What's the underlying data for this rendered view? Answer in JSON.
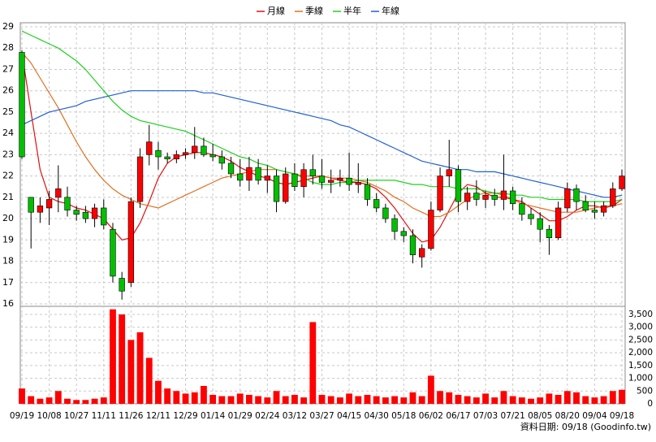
{
  "chart_data": {
    "type": "candlestick",
    "source": "資料日期: 09/18 (Goodinfo.tw)",
    "grid": true,
    "legend": "top",
    "up_color": "#ff0000",
    "down_color": "#00c000",
    "categories": [
      "09/19",
      null,
      null,
      "10/08",
      null,
      null,
      "10/27",
      null,
      null,
      "11/11",
      null,
      null,
      "11/26",
      null,
      null,
      "12/11",
      null,
      null,
      "12/29",
      null,
      null,
      "01/14",
      null,
      null,
      "01/29",
      null,
      null,
      "02/24",
      null,
      null,
      "03/12",
      null,
      null,
      "03/27",
      null,
      null,
      "04/15",
      null,
      null,
      "04/30",
      null,
      null,
      "05/18",
      null,
      null,
      "06/02",
      null,
      null,
      "06/17",
      null,
      null,
      "07/03",
      null,
      null,
      "07/21",
      null,
      null,
      "08/05",
      null,
      null,
      "08/20",
      null,
      null,
      "09/04",
      null,
      null,
      "09/18"
    ],
    "open": [
      27.8,
      21.0,
      20.3,
      20.5,
      21.0,
      21.0,
      20.4,
      20.3,
      20.0,
      20.5,
      19.5,
      17.2,
      17.0,
      20.8,
      23.0,
      23.2,
      22.9,
      22.8,
      23.0,
      23.1,
      23.4,
      23.0,
      22.9,
      22.6,
      22.1,
      21.8,
      22.4,
      21.8,
      22.0,
      20.8,
      22.1,
      21.5,
      22.3,
      22.0,
      21.7,
      21.8,
      21.9,
      21.6,
      21.6,
      20.9,
      20.5,
      20.0,
      19.4,
      19.2,
      18.2,
      18.6,
      20.4,
      22.0,
      22.3,
      20.8,
      21.2,
      20.9,
      21.1,
      20.9,
      21.3,
      20.7,
      20.2,
      20.0,
      19.5,
      19.1,
      20.5,
      21.4,
      20.8,
      20.4,
      20.3,
      20.6,
      21.4
    ],
    "high": [
      27.9,
      21.0,
      21.0,
      21.3,
      22.5,
      21.5,
      20.6,
      20.6,
      20.7,
      20.9,
      19.8,
      17.5,
      21.0,
      23.3,
      24.4,
      23.6,
      23.1,
      23.2,
      23.3,
      24.3,
      23.8,
      23.5,
      23.2,
      22.9,
      22.8,
      22.9,
      22.8,
      22.5,
      22.3,
      22.4,
      22.6,
      22.6,
      23.0,
      22.8,
      22.3,
      22.3,
      23.1,
      22.6,
      21.9,
      21.2,
      20.7,
      20.2,
      19.6,
      19.5,
      18.8,
      20.8,
      22.4,
      23.7,
      22.5,
      21.5,
      21.8,
      21.3,
      21.4,
      23.0,
      21.5,
      21.0,
      20.5,
      20.3,
      19.7,
      20.8,
      21.7,
      21.6,
      21.1,
      20.8,
      20.8,
      21.7,
      22.3
    ],
    "low": [
      22.8,
      18.6,
      19.8,
      19.7,
      20.3,
      20.1,
      19.9,
      19.8,
      19.6,
      19.5,
      17.0,
      16.2,
      16.8,
      20.5,
      22.5,
      22.3,
      22.6,
      22.6,
      22.8,
      22.8,
      22.9,
      22.7,
      22.3,
      21.9,
      21.5,
      21.3,
      21.6,
      21.2,
      20.3,
      20.7,
      21.3,
      21.0,
      21.6,
      21.4,
      21.2,
      21.5,
      21.3,
      21.2,
      20.6,
      20.3,
      19.8,
      19.0,
      18.9,
      17.9,
      17.7,
      18.5,
      20.3,
      21.5,
      20.3,
      20.4,
      20.6,
      20.5,
      20.6,
      20.4,
      20.4,
      19.9,
      19.7,
      18.9,
      18.3,
      19.0,
      20.3,
      20.4,
      20.3,
      20.0,
      20.1,
      20.5,
      21.3
    ],
    "close": [
      22.9,
      20.3,
      20.6,
      20.9,
      21.4,
      20.4,
      20.2,
      20.0,
      20.5,
      19.7,
      17.3,
      16.6,
      20.8,
      22.9,
      23.6,
      22.9,
      22.8,
      23.0,
      23.1,
      23.4,
      23.0,
      22.9,
      22.6,
      22.1,
      21.8,
      22.4,
      21.8,
      22.0,
      20.8,
      22.1,
      21.5,
      22.3,
      22.0,
      21.7,
      21.8,
      21.9,
      21.6,
      21.7,
      20.9,
      20.5,
      20.0,
      19.4,
      19.2,
      18.3,
      18.6,
      20.4,
      22.0,
      22.3,
      20.8,
      21.2,
      20.9,
      21.1,
      20.9,
      21.3,
      20.7,
      20.2,
      20.0,
      19.5,
      19.1,
      20.5,
      21.4,
      20.8,
      20.4,
      20.3,
      20.6,
      21.4,
      22.0
    ],
    "series": [
      {
        "name": "月線",
        "color": "#e01010",
        "values": [
          27.8,
          25.0,
          22.3,
          21.0,
          20.8,
          20.7,
          20.5,
          20.4,
          20.2,
          20.0,
          19.5,
          19.0,
          19.1,
          19.8,
          20.8,
          21.9,
          22.6,
          22.9,
          23.0,
          23.1,
          23.1,
          23.0,
          22.9,
          22.7,
          22.4,
          22.2,
          22.0,
          21.9,
          21.7,
          21.6,
          21.7,
          21.8,
          21.9,
          22.0,
          21.9,
          21.8,
          21.7,
          21.7,
          21.6,
          21.4,
          21.0,
          20.5,
          19.9,
          19.3,
          18.9,
          19.0,
          19.6,
          20.4,
          21.2,
          21.6,
          21.5,
          21.2,
          21.0,
          21.0,
          20.9,
          20.8,
          20.5,
          20.2,
          19.9,
          19.9,
          20.1,
          20.4,
          20.6,
          20.6,
          20.5,
          20.6,
          20.9
        ]
      },
      {
        "name": "季線",
        "color": "#e07020",
        "values": [
          27.8,
          27.3,
          26.6,
          25.9,
          25.2,
          24.4,
          23.6,
          22.9,
          22.3,
          21.8,
          21.4,
          21.1,
          20.9,
          20.7,
          20.6,
          20.5,
          20.7,
          20.9,
          21.1,
          21.3,
          21.5,
          21.7,
          21.9,
          22.0,
          22.1,
          22.2,
          22.3,
          22.3,
          22.3,
          22.2,
          22.1,
          22.0,
          22.0,
          22.0,
          21.9,
          21.9,
          21.9,
          21.8,
          21.7,
          21.5,
          21.3,
          21.0,
          20.8,
          20.5,
          20.3,
          20.1,
          20.1,
          20.3,
          20.6,
          20.9,
          21.1,
          21.2,
          21.2,
          21.1,
          20.9,
          20.7,
          20.6,
          20.5,
          20.4,
          20.3,
          20.3,
          20.3,
          20.4,
          20.5,
          20.6,
          20.6,
          20.7
        ]
      },
      {
        "name": "半年",
        "color": "#20d020",
        "values": [
          28.8,
          28.6,
          28.4,
          28.2,
          28.0,
          27.7,
          27.4,
          27.0,
          26.5,
          26.0,
          25.5,
          25.1,
          24.8,
          24.6,
          24.5,
          24.4,
          24.3,
          24.2,
          24.1,
          23.9,
          23.7,
          23.5,
          23.3,
          23.1,
          22.9,
          22.8,
          22.6,
          22.5,
          22.3,
          22.2,
          22.1,
          21.9,
          21.7,
          21.6,
          21.6,
          21.7,
          21.7,
          21.8,
          21.8,
          21.8,
          21.8,
          21.8,
          21.7,
          21.6,
          21.6,
          21.5,
          21.5,
          21.5,
          21.4,
          21.4,
          21.4,
          21.3,
          21.2,
          21.2,
          21.1,
          21.1,
          21.0,
          21.0,
          20.9,
          20.9,
          20.9,
          20.9,
          20.8,
          20.8,
          20.8,
          20.8,
          20.9
        ]
      },
      {
        "name": "年線",
        "color": "#2060d0",
        "values": [
          24.4,
          24.6,
          24.8,
          25.0,
          25.1,
          25.2,
          25.3,
          25.5,
          25.6,
          25.7,
          25.8,
          25.9,
          26.0,
          26.0,
          26.0,
          26.0,
          26.0,
          26.0,
          26.0,
          26.0,
          25.9,
          25.9,
          25.8,
          25.7,
          25.6,
          25.5,
          25.4,
          25.3,
          25.2,
          25.1,
          25.0,
          24.9,
          24.8,
          24.7,
          24.6,
          24.4,
          24.3,
          24.1,
          23.9,
          23.7,
          23.5,
          23.3,
          23.1,
          22.9,
          22.7,
          22.6,
          22.5,
          22.4,
          22.3,
          22.3,
          22.2,
          22.2,
          22.2,
          22.1,
          22.0,
          21.9,
          21.8,
          21.7,
          21.6,
          21.5,
          21.4,
          21.3,
          21.2,
          21.1,
          21.0,
          21.0,
          21.1
        ]
      }
    ],
    "volume": {
      "axis": "y2",
      "color": "#ff0000",
      "values": [
        600,
        300,
        200,
        250,
        500,
        200,
        150,
        150,
        200,
        250,
        3700,
        3500,
        2500,
        2800,
        1800,
        900,
        600,
        500,
        400,
        450,
        700,
        350,
        300,
        300,
        400,
        350,
        300,
        250,
        500,
        300,
        350,
        250,
        3200,
        350,
        300,
        250,
        400,
        300,
        350,
        300,
        250,
        300,
        250,
        450,
        300,
        1100,
        500,
        450,
        350,
        300,
        250,
        400,
        250,
        500,
        300,
        250,
        200,
        250,
        400,
        350,
        500,
        450,
        300,
        250,
        300,
        500,
        550
      ]
    },
    "ylim": [
      16,
      29
    ],
    "yticks": [
      16,
      17,
      18,
      19,
      20,
      21,
      22,
      23,
      24,
      25,
      26,
      27,
      28,
      29
    ],
    "y2lim": [
      0,
      3700
    ],
    "y2ticks": [
      0,
      500,
      {
        "value": 1000,
        "label": "1,000"
      },
      {
        "value": 1500,
        "label": "1,500"
      },
      {
        "value": 2000,
        "label": "2,000"
      },
      {
        "value": 2500,
        "label": "2,500"
      },
      {
        "value": 3000,
        "label": "3,000"
      },
      {
        "value": 3500,
        "label": "3,500"
      }
    ]
  }
}
